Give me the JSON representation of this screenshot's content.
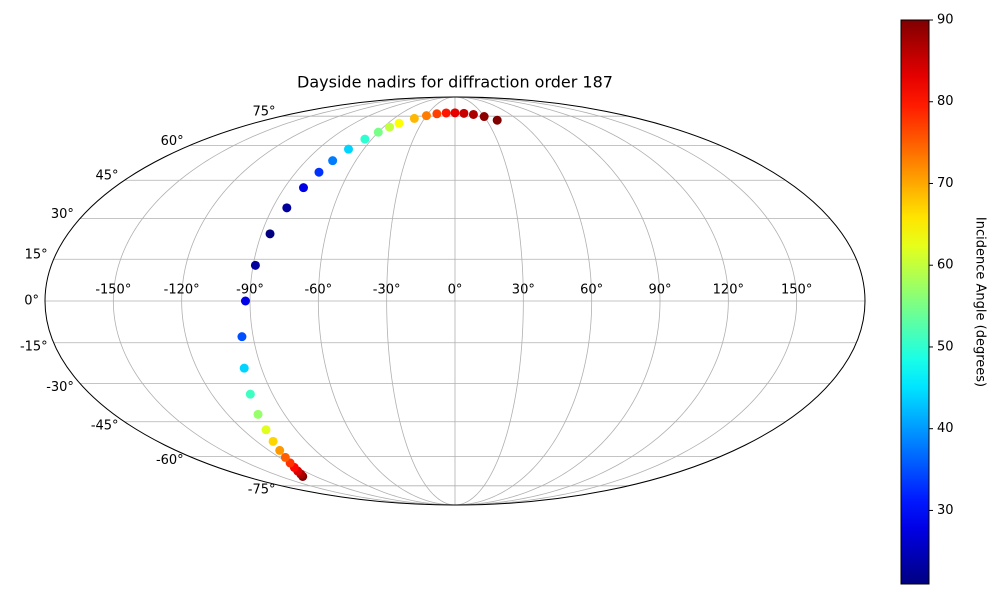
{
  "chart_data": {
    "type": "scatter",
    "projection": "mollweide",
    "title": "Dayside nadirs for diffraction order 187",
    "x": [
      -131,
      -128,
      -125,
      -122,
      -119,
      -116,
      -113,
      -110,
      -107,
      -104,
      -101,
      -98,
      -95,
      -92,
      -89,
      -86,
      -83,
      -80,
      -77,
      -74,
      -70,
      -65,
      -60,
      -55,
      -50,
      -40,
      -30,
      -20,
      -10,
      0,
      10,
      20,
      30,
      40
    ],
    "y": [
      -69.8,
      -68.6,
      -67.0,
      -65.2,
      -63.0,
      -60.4,
      -57.2,
      -53.2,
      -48.3,
      -42.0,
      -34.1,
      -24.3,
      -12.8,
      0,
      12.8,
      24.3,
      34.1,
      42.0,
      48.3,
      53.2,
      58.3,
      63.0,
      66.4,
      69.0,
      71.0,
      73.7,
      75.3,
      76.4,
      76.9,
      77.0,
      76.7,
      76.0,
      74.8,
      72.7
    ],
    "c": [
      90,
      87,
      84,
      81,
      78,
      75,
      71,
      67,
      62,
      57,
      51,
      44,
      35,
      28,
      23,
      21,
      23,
      28,
      33,
      38,
      44,
      50,
      55,
      60,
      64,
      69,
      73,
      77,
      80,
      83,
      85,
      87,
      89,
      90
    ],
    "colormap": "jet",
    "clim": [
      21,
      90
    ],
    "cticks": [
      30,
      40,
      50,
      60,
      70,
      80,
      90
    ],
    "colorbar_label": "Incidence Angle (degrees)",
    "xlim": [
      -180,
      180
    ],
    "ylim": [
      -90,
      90
    ],
    "xticks": [
      {
        "value": -150,
        "label": "-150°"
      },
      {
        "value": -120,
        "label": "-120°"
      },
      {
        "value": -90,
        "label": "-90°"
      },
      {
        "value": -60,
        "label": "-60°"
      },
      {
        "value": -30,
        "label": "-30°"
      },
      {
        "value": 0,
        "label": "0°"
      },
      {
        "value": 30,
        "label": "30°"
      },
      {
        "value": 60,
        "label": "60°"
      },
      {
        "value": 90,
        "label": "90°"
      },
      {
        "value": 120,
        "label": "120°"
      },
      {
        "value": 150,
        "label": "150°"
      }
    ],
    "yticks": [
      {
        "value": -75,
        "label": "-75°"
      },
      {
        "value": -60,
        "label": "-60°"
      },
      {
        "value": -45,
        "label": "-45°"
      },
      {
        "value": -30,
        "label": "-30°"
      },
      {
        "value": -15,
        "label": "-15°"
      },
      {
        "value": 0,
        "label": "0°"
      },
      {
        "value": 15,
        "label": "15°"
      },
      {
        "value": 30,
        "label": "30°"
      },
      {
        "value": 45,
        "label": "45°"
      },
      {
        "value": 60,
        "label": "60°"
      },
      {
        "value": 75,
        "label": "75°"
      }
    ],
    "grid": true
  }
}
